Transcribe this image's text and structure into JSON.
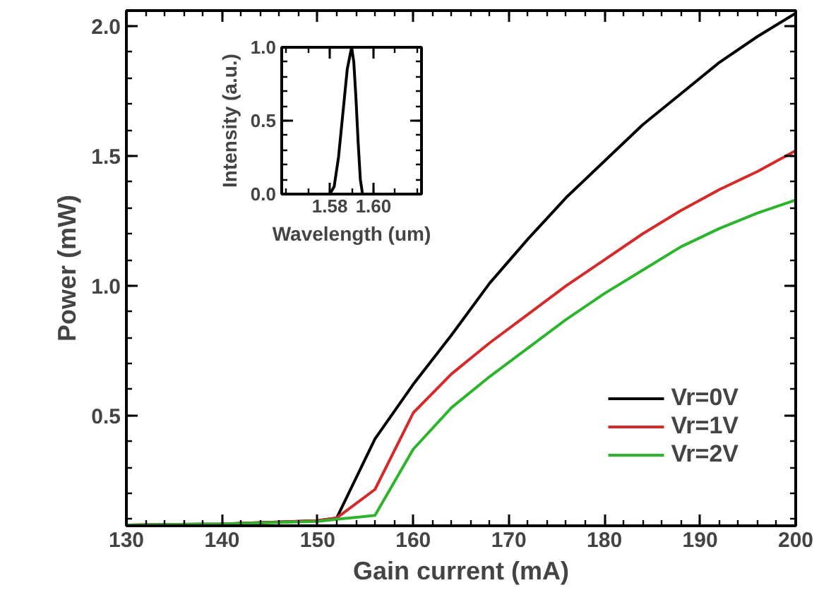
{
  "chart_data": [
    {
      "type": "line",
      "xlabel": "Gain current (mA)",
      "ylabel": "Power (mW)",
      "xlim": [
        130,
        200
      ],
      "xticks": [
        130,
        140,
        150,
        160,
        170,
        180,
        190,
        200
      ],
      "ylim": [
        0.075,
        2.06
      ],
      "yticks": [
        {
          "value": 0.5,
          "label": "0.5"
        },
        {
          "value": 1.0,
          "label": "1.0"
        },
        {
          "value": 1.5,
          "label": "1.5"
        },
        {
          "value": 2.0,
          "label": "2.0"
        }
      ],
      "legend": "bottom right",
      "x": [
        130,
        140,
        150,
        152,
        156,
        160,
        164,
        168,
        172,
        176,
        180,
        184,
        188,
        192,
        196,
        200
      ],
      "series": [
        {
          "name": "Vr=0V",
          "color": "#000000",
          "values": [
            0.078,
            0.082,
            0.095,
            0.105,
            0.41,
            0.62,
            0.81,
            1.01,
            1.18,
            1.34,
            1.48,
            1.62,
            1.74,
            1.86,
            1.96,
            2.05
          ]
        },
        {
          "name": "Vr=1V",
          "color": "#d42a2a",
          "values": [
            0.078,
            0.082,
            0.095,
            0.105,
            0.215,
            0.51,
            0.66,
            0.78,
            0.89,
            1.0,
            1.1,
            1.2,
            1.29,
            1.37,
            1.44,
            1.52
          ]
        },
        {
          "name": "Vr=2V",
          "color": "#2cb52c",
          "values": [
            0.078,
            0.082,
            0.092,
            0.1,
            0.115,
            0.37,
            0.53,
            0.65,
            0.76,
            0.87,
            0.97,
            1.06,
            1.15,
            1.22,
            1.28,
            1.33
          ]
        }
      ]
    },
    {
      "type": "line",
      "xlabel": "Wavelength (um)",
      "ylabel": "Intensity (a.u.)",
      "xlim": [
        1.558,
        1.622
      ],
      "xticks": [
        {
          "value": 1.58,
          "label": "1.58"
        },
        {
          "value": 1.6,
          "label": "1.60"
        }
      ],
      "ylim": [
        0,
        1
      ],
      "yticks": [
        {
          "value": 0,
          "label": "0.0"
        },
        {
          "value": 0.5,
          "label": "0.5"
        },
        {
          "value": 1,
          "label": "1.0"
        }
      ],
      "series": [
        {
          "color": "#000000",
          "x": [
            1.58,
            1.582,
            1.584,
            1.586,
            1.588,
            1.59,
            1.591,
            1.592,
            1.593,
            1.594,
            1.595
          ],
          "values": [
            0,
            0.05,
            0.25,
            0.55,
            0.85,
            1.0,
            0.9,
            0.65,
            0.35,
            0.1,
            0
          ]
        }
      ]
    }
  ]
}
